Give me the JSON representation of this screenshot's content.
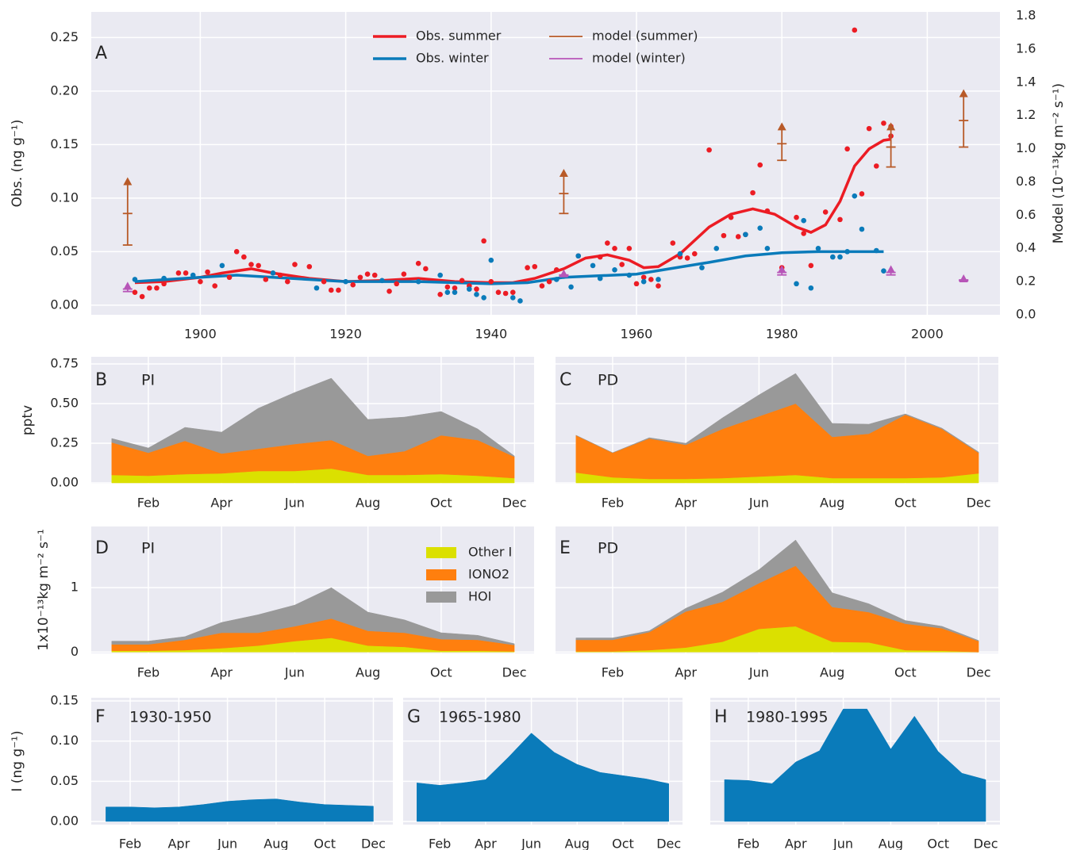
{
  "chart_data": [
    {
      "type": "scatter",
      "label": "A",
      "ylabel": "Obs. (ng g⁻¹)",
      "y2label": "Model (10⁻¹³kg m⁻² s⁻¹)",
      "xlim": [
        1885,
        2010
      ],
      "xticks": [
        1900,
        1920,
        1940,
        1960,
        1980,
        2000
      ],
      "ylim": [
        -0.009,
        0.274
      ],
      "yticks": [
        {
          "value": 0,
          "label": "0.00"
        },
        0.05,
        {
          "value": 0.1,
          "label": "0.10"
        },
        0.15,
        {
          "value": 0.2,
          "label": "0.20"
        },
        0.25
      ],
      "y2lim": [
        0,
        1.824
      ],
      "y2ticks": [
        {
          "value": 0,
          "label": "0.0"
        },
        0.2,
        0.4,
        0.6,
        0.8,
        {
          "value": 1,
          "label": "1.0"
        },
        1.2,
        1.4,
        1.6,
        1.8
      ],
      "grid": true,
      "legend": "upper center",
      "series": [
        {
          "name": "Obs. summer",
          "type": "line",
          "color": "#ec1c24",
          "x": [
            1891,
            1895,
            1900,
            1903,
            1907,
            1910,
            1915,
            1920,
            1925,
            1930,
            1935,
            1940,
            1943,
            1946,
            1950,
            1953,
            1956,
            1959,
            1961,
            1963,
            1966,
            1970,
            1973,
            1976,
            1979,
            1982,
            1984,
            1986,
            1988,
            1990,
            1992,
            1994,
            1995
          ],
          "values": [
            0.021,
            0.022,
            0.026,
            0.03,
            0.034,
            0.03,
            0.025,
            0.022,
            0.023,
            0.025,
            0.022,
            0.021,
            0.021,
            0.025,
            0.034,
            0.044,
            0.047,
            0.042,
            0.035,
            0.036,
            0.048,
            0.073,
            0.085,
            0.09,
            0.085,
            0.073,
            0.068,
            0.075,
            0.097,
            0.13,
            0.146,
            0.154,
            0.155
          ]
        },
        {
          "name": "Obs. winter",
          "type": "line",
          "color": "#0a7bba",
          "x": [
            1891,
            1900,
            1905,
            1910,
            1920,
            1930,
            1940,
            1945,
            1950,
            1960,
            1970,
            1975,
            1980,
            1985,
            1990,
            1994
          ],
          "values": [
            0.022,
            0.026,
            0.028,
            0.026,
            0.022,
            0.022,
            0.02,
            0.021,
            0.026,
            0.029,
            0.04,
            0.046,
            0.049,
            0.05,
            0.05,
            0.05
          ]
        },
        {
          "type": "scatter",
          "color": "#ec1c24",
          "x": [
            1891,
            1892,
            1893,
            1894,
            1895,
            1897,
            1898,
            1900,
            1901,
            1902,
            1904,
            1905,
            1906,
            1907,
            1908,
            1909,
            1911,
            1912,
            1913,
            1915,
            1917,
            1918,
            1919,
            1921,
            1922,
            1923,
            1924,
            1926,
            1927,
            1928,
            1930,
            1931,
            1933,
            1934,
            1935,
            1936,
            1937,
            1938,
            1939,
            1940,
            1941,
            1942,
            1943,
            1945,
            1946,
            1947,
            1948,
            1949,
            1952,
            1955,
            1956,
            1957,
            1958,
            1959,
            1960,
            1961,
            1962,
            1963,
            1965,
            1966,
            1967,
            1968,
            1970,
            1972,
            1973,
            1974,
            1975,
            1976,
            1977,
            1978,
            1980,
            1982,
            1983,
            1984,
            1986,
            1988,
            1989,
            1990,
            1991,
            1992,
            1993,
            1994,
            1995,
            1995
          ],
          "values": [
            0.012,
            0.008,
            0.016,
            0.016,
            0.02,
            0.03,
            0.03,
            0.022,
            0.031,
            0.018,
            0.026,
            0.05,
            0.045,
            0.038,
            0.037,
            0.024,
            0.028,
            0.022,
            0.038,
            0.036,
            0.022,
            0.014,
            0.014,
            0.019,
            0.026,
            0.029,
            0.028,
            0.013,
            0.02,
            0.029,
            0.039,
            0.034,
            0.01,
            0.017,
            0.016,
            0.023,
            0.018,
            0.015,
            0.06,
            0.022,
            0.012,
            0.011,
            0.012,
            0.035,
            0.036,
            0.018,
            0.022,
            0.033,
            0.046,
            0.045,
            0.058,
            0.053,
            0.038,
            0.053,
            0.02,
            0.026,
            0.024,
            0.018,
            0.058,
            0.045,
            0.044,
            0.048,
            0.145,
            0.065,
            0.082,
            0.064,
            0.066,
            0.105,
            0.131,
            0.088,
            0.035,
            0.082,
            0.067,
            0.037,
            0.087,
            0.08,
            0.146,
            0.257,
            0.104,
            0.165,
            0.13,
            0.17,
            0.167,
            0.158
          ]
        },
        {
          "type": "scatter",
          "color": "#0a7bba",
          "x": [
            1891,
            1895,
            1899,
            1903,
            1910,
            1916,
            1920,
            1925,
            1930,
            1933,
            1934,
            1935,
            1937,
            1938,
            1939,
            1940,
            1943,
            1944,
            1949,
            1950,
            1951,
            1952,
            1954,
            1955,
            1957,
            1959,
            1961,
            1963,
            1966,
            1969,
            1971,
            1975,
            1977,
            1978,
            1982,
            1983,
            1984,
            1985,
            1987,
            1988,
            1989,
            1990,
            1991,
            1993,
            1994
          ],
          "values": [
            0.024,
            0.025,
            0.028,
            0.037,
            0.03,
            0.016,
            0.022,
            0.023,
            0.022,
            0.028,
            0.012,
            0.012,
            0.015,
            0.01,
            0.007,
            0.042,
            0.007,
            0.004,
            0.024,
            0.027,
            0.017,
            0.046,
            0.037,
            0.025,
            0.033,
            0.028,
            0.022,
            0.024,
            0.048,
            0.035,
            0.053,
            0.066,
            0.072,
            0.053,
            0.02,
            0.079,
            0.016,
            0.053,
            0.045,
            0.045,
            0.05,
            0.102,
            0.071,
            0.051,
            0.032
          ]
        },
        {
          "name": "model (summer)",
          "type": "errorbar",
          "axis": "y2",
          "color": "#b85a28",
          "x": [
            1890,
            1950,
            1980,
            1995,
            2005
          ],
          "values": [
            0.61,
            0.73,
            1.03,
            1.01,
            1.17
          ],
          "errors": [
            0.19,
            0.12,
            0.1,
            0.12,
            0.16
          ]
        },
        {
          "name": "model (winter)",
          "type": "errorbar",
          "axis": "y2",
          "color": "#b755b8",
          "x": [
            1890,
            1950,
            1980,
            1995,
            2005
          ],
          "values": [
            0.155,
            0.24,
            0.255,
            0.255,
            0.21
          ],
          "errors": [
            0.015,
            0.005,
            0.015,
            0.015,
            0.005
          ]
        }
      ]
    },
    {
      "type": "area",
      "stacked": true,
      "label": "B",
      "title": "PI",
      "ylabel": "pptv",
      "categories": [
        null,
        "Feb",
        null,
        "Apr",
        null,
        "Jun",
        null,
        "Aug",
        null,
        "Oct",
        null,
        "Dec"
      ],
      "ylim": [
        -0.005,
        0.795
      ],
      "yticks": [
        {
          "value": 0,
          "label": "0.00"
        },
        0.25,
        {
          "value": 0.5,
          "label": "0.50"
        },
        0.75
      ],
      "grid": true,
      "series": [
        {
          "color": "#dbe000",
          "values": [
            0.05,
            0.045,
            0.055,
            0.06,
            0.075,
            0.075,
            0.09,
            0.05,
            0.05,
            0.055,
            0.045,
            0.03
          ]
        },
        {
          "color": "#ff7f0e",
          "values": [
            0.205,
            0.145,
            0.21,
            0.125,
            0.14,
            0.17,
            0.18,
            0.12,
            0.15,
            0.245,
            0.225,
            0.135
          ]
        },
        {
          "color": "#999999",
          "values": [
            0.025,
            0.03,
            0.085,
            0.135,
            0.255,
            0.325,
            0.39,
            0.23,
            0.215,
            0.15,
            0.07,
            0.005
          ]
        }
      ]
    },
    {
      "type": "area",
      "stacked": true,
      "label": "C",
      "title": "PD",
      "categories": [
        null,
        "Feb",
        null,
        "Apr",
        null,
        "Jun",
        null,
        "Aug",
        null,
        "Oct",
        null,
        "Dec"
      ],
      "ylim": [
        -0.005,
        0.795
      ],
      "yticks": [
        0,
        0.25,
        0.5,
        0.75
      ],
      "ytick_labels": false,
      "grid": true,
      "series": [
        {
          "color": "#dbe000",
          "values": [
            0.065,
            0.035,
            0.025,
            0.025,
            0.03,
            0.04,
            0.05,
            0.03,
            0.03,
            0.03,
            0.035,
            0.06
          ]
        },
        {
          "color": "#ff7f0e",
          "values": [
            0.235,
            0.155,
            0.255,
            0.215,
            0.31,
            0.38,
            0.45,
            0.26,
            0.28,
            0.4,
            0.305,
            0.13
          ]
        },
        {
          "color": "#999999",
          "values": [
            0,
            0,
            0.005,
            0.01,
            0.07,
            0.135,
            0.19,
            0.085,
            0.06,
            0.005,
            0.005,
            0.005
          ]
        }
      ]
    },
    {
      "type": "area",
      "stacked": true,
      "label": "D",
      "title": "PI",
      "ylabel": "1x10⁻¹³kg m⁻² s⁻¹",
      "legend": "upper right",
      "categories": [
        null,
        "Feb",
        null,
        "Apr",
        null,
        "Jun",
        null,
        "Aug",
        null,
        "Oct",
        null,
        "Dec"
      ],
      "ylim": [
        -0.02,
        1.95
      ],
      "yticks": [
        0,
        1
      ],
      "grid": true,
      "series": [
        {
          "name": "Other I",
          "color": "#dbe000",
          "values": [
            0.02,
            0.02,
            0.03,
            0.06,
            0.1,
            0.17,
            0.22,
            0.1,
            0.08,
            0.02,
            0.02,
            0.01
          ]
        },
        {
          "name": "IONO2",
          "color": "#ff7f0e",
          "values": [
            0.1,
            0.1,
            0.16,
            0.24,
            0.2,
            0.23,
            0.3,
            0.23,
            0.22,
            0.18,
            0.17,
            0.1
          ]
        },
        {
          "name": "HOI",
          "color": "#999999",
          "values": [
            0.05,
            0.05,
            0.05,
            0.16,
            0.28,
            0.33,
            0.48,
            0.29,
            0.2,
            0.1,
            0.07,
            0.02
          ]
        }
      ]
    },
    {
      "type": "area",
      "stacked": true,
      "label": "E",
      "title": "PD",
      "categories": [
        null,
        "Feb",
        null,
        "Apr",
        null,
        "Jun",
        null,
        "Aug",
        null,
        "Oct",
        null,
        "Dec"
      ],
      "ylim": [
        -0.02,
        1.95
      ],
      "yticks": [
        0,
        1
      ],
      "ytick_labels": false,
      "grid": true,
      "series": [
        {
          "color": "#dbe000",
          "values": [
            0.01,
            0.01,
            0.03,
            0.07,
            0.16,
            0.36,
            0.4,
            0.16,
            0.15,
            0.03,
            0.02,
            0.0
          ]
        },
        {
          "color": "#ff7f0e",
          "values": [
            0.18,
            0.18,
            0.28,
            0.56,
            0.62,
            0.71,
            0.94,
            0.54,
            0.47,
            0.41,
            0.35,
            0.17
          ]
        },
        {
          "color": "#999999",
          "values": [
            0.03,
            0.03,
            0.02,
            0.05,
            0.15,
            0.21,
            0.4,
            0.22,
            0.13,
            0.05,
            0.03,
            0.01
          ]
        }
      ]
    },
    {
      "type": "area",
      "label": "F",
      "title": "1930-1950",
      "ylabel": "I (ng g⁻¹)",
      "color": "#0a7bba",
      "categories": [
        null,
        "Feb",
        null,
        "Apr",
        null,
        "Jun",
        null,
        "Aug",
        null,
        "Oct",
        null,
        "Dec"
      ],
      "ylim": [
        -0.004,
        0.154
      ],
      "yticks": [
        {
          "value": 0,
          "label": "0.00"
        },
        0.05,
        {
          "value": 0.1,
          "label": "0.10"
        },
        0.15
      ],
      "grid": true,
      "values": [
        0.018,
        0.018,
        0.017,
        0.018,
        0.021,
        0.025,
        0.027,
        0.028,
        0.024,
        0.021,
        0.02,
        0.019
      ]
    },
    {
      "type": "area",
      "label": "G",
      "title": "1965-1980",
      "color": "#0a7bba",
      "categories": [
        null,
        "Feb",
        null,
        "Apr",
        null,
        "Jun",
        null,
        "Aug",
        null,
        "Oct",
        null,
        "Dec"
      ],
      "ylim": [
        -0.004,
        0.154
      ],
      "yticks": [
        0,
        0.05,
        0.1,
        0.15
      ],
      "ytick_labels": false,
      "grid": true,
      "values": [
        0.048,
        0.045,
        0.048,
        0.052,
        0.08,
        0.11,
        0.086,
        0.071,
        0.061,
        0.057,
        0.053,
        0.047
      ]
    },
    {
      "type": "area",
      "label": "H",
      "title": "1980-1995",
      "color": "#0a7bba",
      "categories": [
        null,
        "Feb",
        null,
        "Apr",
        null,
        "Jun",
        null,
        "Aug",
        null,
        "Oct",
        null,
        "Dec"
      ],
      "ylim": [
        -0.004,
        0.154
      ],
      "yticks": [
        0,
        0.05,
        0.1,
        0.15
      ],
      "ytick_labels": false,
      "grid": true,
      "values": [
        0.052,
        0.051,
        0.047,
        0.074,
        0.088,
        0.14,
        0.14,
        0.09,
        0.131,
        0.087,
        0.06,
        0.052
      ]
    }
  ]
}
